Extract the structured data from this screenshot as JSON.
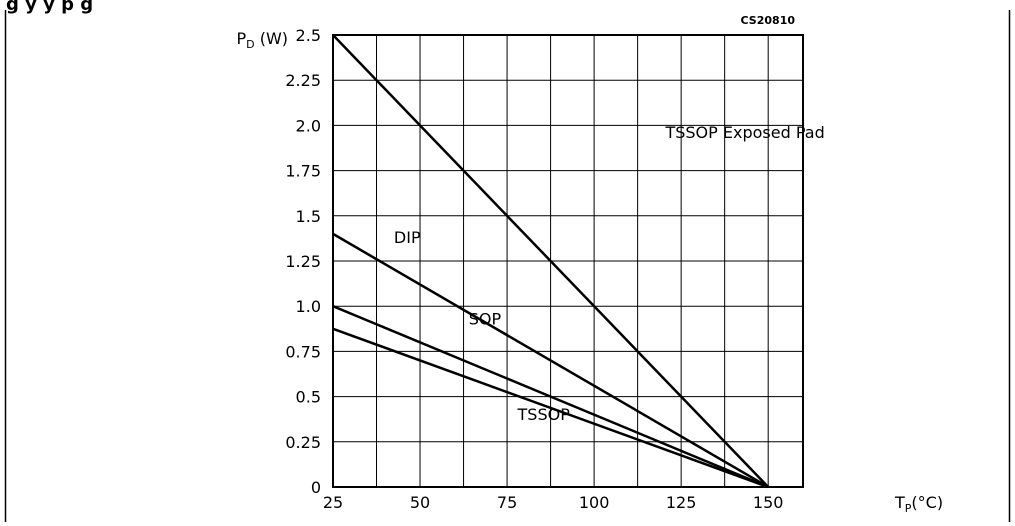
{
  "figure": {
    "caption_fragment": "g                                         y           y      p     g",
    "code": "CS20810"
  },
  "chart_data": {
    "type": "line",
    "title": "",
    "xlabel": "TP(°C)",
    "ylabel": "PD (W)",
    "xlim": [
      25,
      160
    ],
    "ylim": [
      0,
      2.5
    ],
    "x_ticks": [
      25,
      50,
      75,
      100,
      125,
      150
    ],
    "x_tick_labels": [
      "25",
      "50",
      "75",
      "100",
      "125",
      "150"
    ],
    "y_ticks": [
      0,
      0.25,
      0.5,
      0.75,
      1.0,
      1.25,
      1.5,
      1.75,
      2.0,
      2.25,
      2.5
    ],
    "y_tick_labels": [
      "0",
      "0.25",
      "0.5",
      "0.75",
      "1.0",
      "1.25",
      "1.5",
      "1.75",
      "2.0",
      "2.25",
      "2.5"
    ],
    "grid": true,
    "grid_x_step": 12.5,
    "grid_y_step": 0.25,
    "series": [
      {
        "name": "TSSOP Exposed Pad",
        "x": [
          25,
          150
        ],
        "y": [
          2.5,
          0
        ],
        "label_x": 120.5,
        "label_y": 1.93
      },
      {
        "name": "DIP",
        "x": [
          25,
          150
        ],
        "y": [
          1.4,
          0
        ],
        "label_x": 42.5,
        "label_y": 1.35
      },
      {
        "name": "SOP",
        "x": [
          25,
          150
        ],
        "y": [
          1.0,
          0
        ],
        "label_x": 64,
        "label_y": 0.9
      },
      {
        "name": "TSSOP",
        "x": [
          25,
          150
        ],
        "y": [
          0.875,
          0
        ],
        "label_x": 78,
        "label_y": 0.37
      }
    ]
  }
}
